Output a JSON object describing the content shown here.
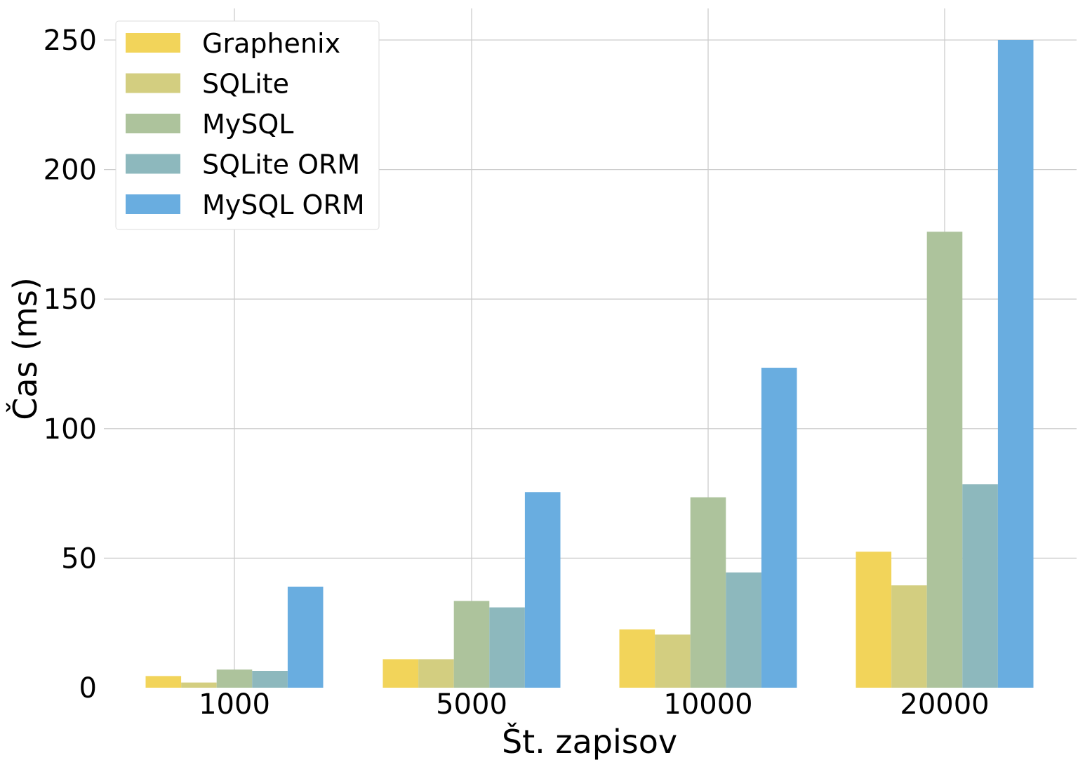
{
  "chart_data": {
    "type": "bar",
    "title": "",
    "xlabel": "Št. zapisov",
    "ylabel": "Čas (ms)",
    "categories": [
      "1000",
      "5000",
      "10000",
      "20000"
    ],
    "ylim": [
      0,
      262
    ],
    "yticks": [
      0,
      50,
      100,
      150,
      200,
      250
    ],
    "grid": true,
    "legend_position": "top-left",
    "series": [
      {
        "name": "Graphenix",
        "color": "#f2d45a",
        "values": [
          4.5,
          11,
          22.5,
          52.5
        ]
      },
      {
        "name": "SQLite",
        "color": "#d3ce80",
        "values": [
          2,
          11,
          20.5,
          39.5
        ]
      },
      {
        "name": "MySQL",
        "color": "#adc39c",
        "values": [
          7,
          33.5,
          73.5,
          176
        ]
      },
      {
        "name": "SQLite ORM",
        "color": "#8db8bd",
        "values": [
          6.5,
          31,
          44.5,
          78.5
        ]
      },
      {
        "name": "MySQL ORM",
        "color": "#69ade0",
        "values": [
          39,
          75.5,
          123.5,
          250
        ]
      }
    ]
  }
}
